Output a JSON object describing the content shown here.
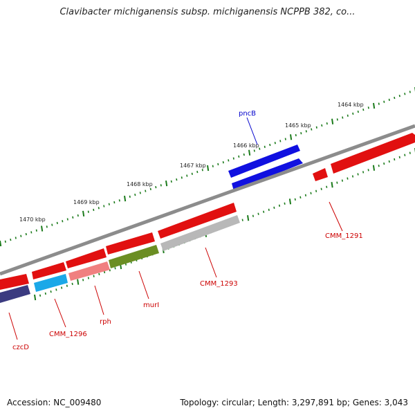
{
  "title": "Clavibacter michiganensis subsp. michiganensis NCPPB 382, co...",
  "footer": {
    "accession": "Accession: NC_009480",
    "topology": "Topology: circular; Length: 3,297,891 bp; Genes: 3,043"
  },
  "colors": {
    "forward": "#e11010",
    "reverse_red": "#e11010",
    "gene_blue": "#1010e0",
    "gene_gray": "#b8b8b8",
    "gene_pink": "#f08080",
    "gene_olive": "#6b8e23",
    "gene_cyan": "#1aa8e8",
    "gene_navy": "#3b3b80",
    "label_red": "#cc0000",
    "label_blue": "#0000cc",
    "tick_green": "#1a7a1a",
    "backbone": "#8c8c8c"
  },
  "scale": [
    "1464 kbp",
    "1465 kbp",
    "1466 kbp",
    "1467 kbp",
    "1468 kbp",
    "1469 kbp",
    "1470 kbp"
  ],
  "genes": [
    {
      "name": "pncB",
      "color": "gene_blue",
      "label_color": "label_blue"
    },
    {
      "name": "CMM_1291",
      "color": "forward",
      "label_color": "label_red"
    },
    {
      "name": "CMM_1293",
      "color": "gene_gray",
      "label_color": "label_red"
    },
    {
      "name": "murI",
      "color": "gene_olive",
      "label_color": "label_red"
    },
    {
      "name": "rph",
      "color": "gene_pink",
      "label_color": "label_red"
    },
    {
      "name": "CMM_1296",
      "color": "gene_cyan",
      "label_color": "label_red"
    },
    {
      "name": "czcD",
      "color": "gene_navy",
      "label_color": "label_red"
    }
  ]
}
